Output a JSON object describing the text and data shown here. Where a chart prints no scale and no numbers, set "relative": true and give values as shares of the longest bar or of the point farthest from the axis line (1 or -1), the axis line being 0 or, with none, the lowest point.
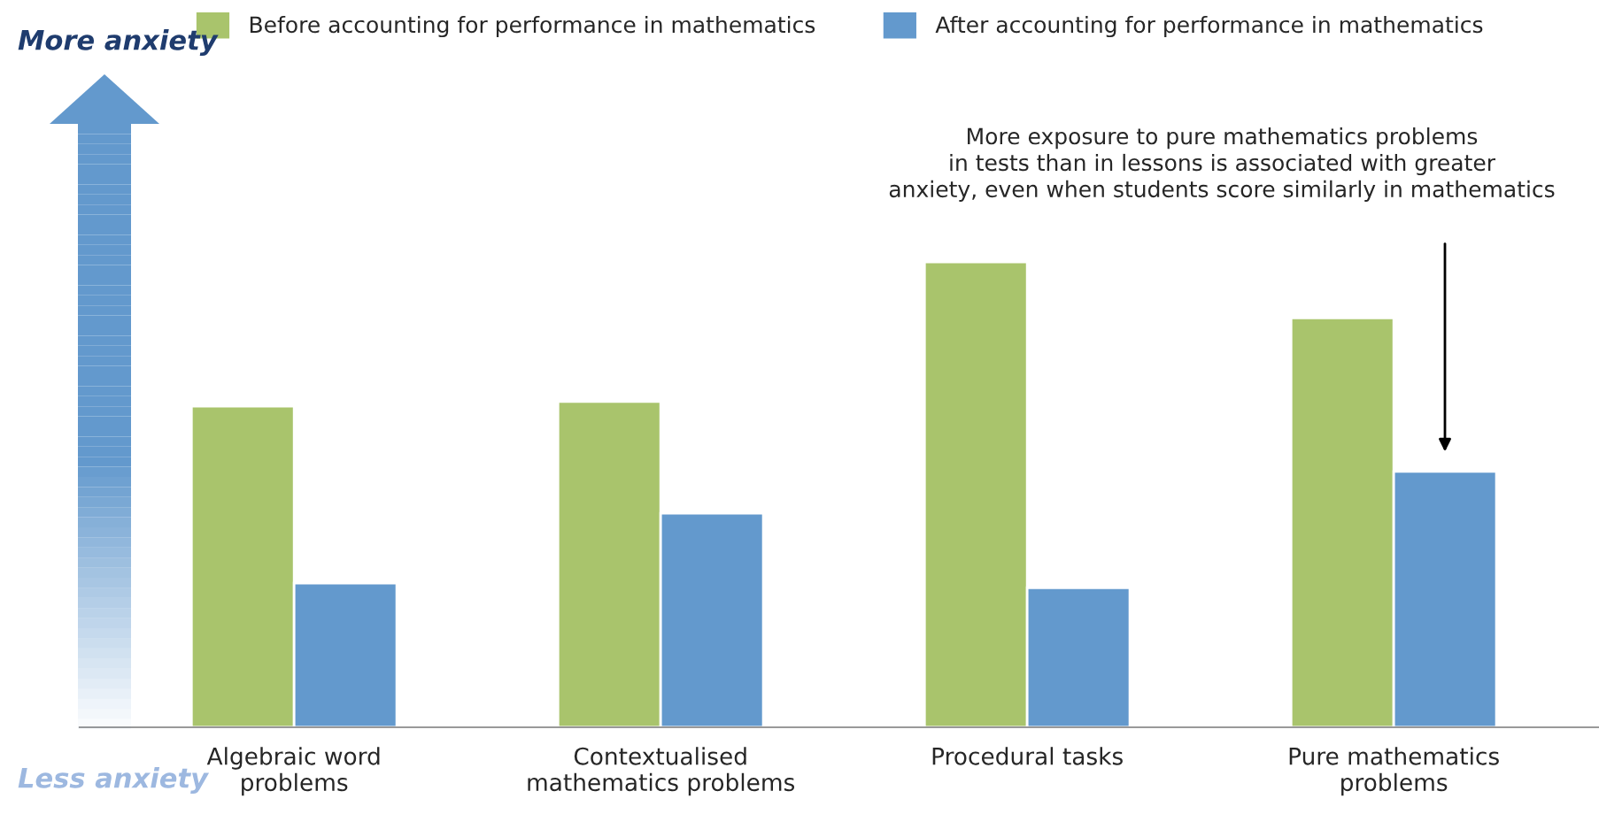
{
  "chart_data": {
    "type": "bar",
    "relative": true,
    "categories": [
      "Algebraic word\nproblems",
      "Contextualised\nmathematics problems",
      "Procedural tasks",
      "Pure mathematics\nproblems"
    ],
    "series": [
      {
        "name": "Before accounting for performance in mathematics",
        "color": "#a9c46c",
        "values": [
          0.69,
          0.7,
          1,
          0.88
        ]
      },
      {
        "name": "After accounting for performance in mathematics",
        "color": "#6399cd",
        "values": [
          0.31,
          0.46,
          0.3,
          0.55
        ]
      }
    ],
    "annotations": [
      "More anxiety",
      "Less anxiety",
      "More exposure to pure mathematics problems\nin tests than in lessons is associated with greater\nanxiety, even when students score similarly in mathematics"
    ],
    "legend": "top",
    "grid": false
  }
}
